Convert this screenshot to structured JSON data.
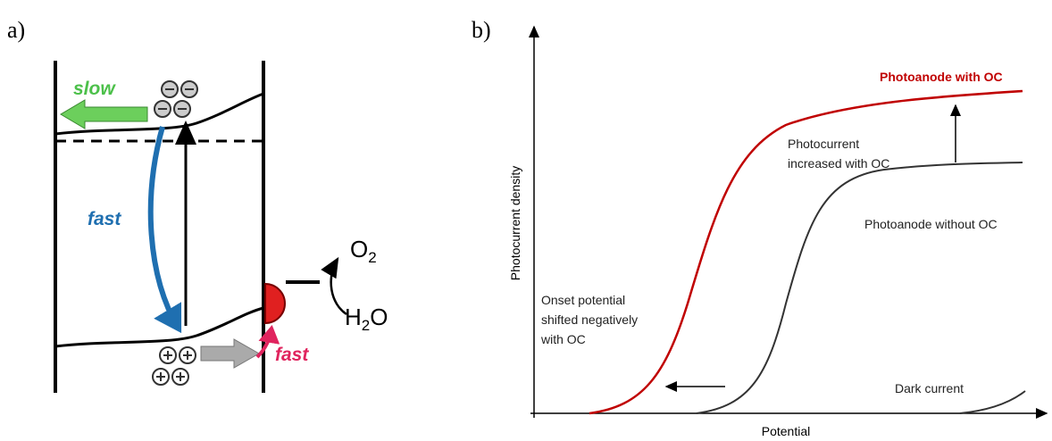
{
  "panel_a": {
    "label": "a)",
    "slow": "slow",
    "fast_electron": "fast",
    "fast_hole": "fast",
    "o2": {
      "main": "O",
      "sub": "2"
    },
    "h2o": {
      "pre": "H",
      "sub": "2",
      "post": "O"
    }
  },
  "panel_b": {
    "label": "b)",
    "y_axis": "Photocurrent density",
    "x_axis": "Potential",
    "with_oc": "Photoanode with OC",
    "increase": [
      "Photocurrent",
      "increased with OC"
    ],
    "without_oc": "Photoanode without OC",
    "onset": [
      "Onset potential",
      "shifted negatively",
      "with OC"
    ],
    "dark": "Dark current"
  }
}
